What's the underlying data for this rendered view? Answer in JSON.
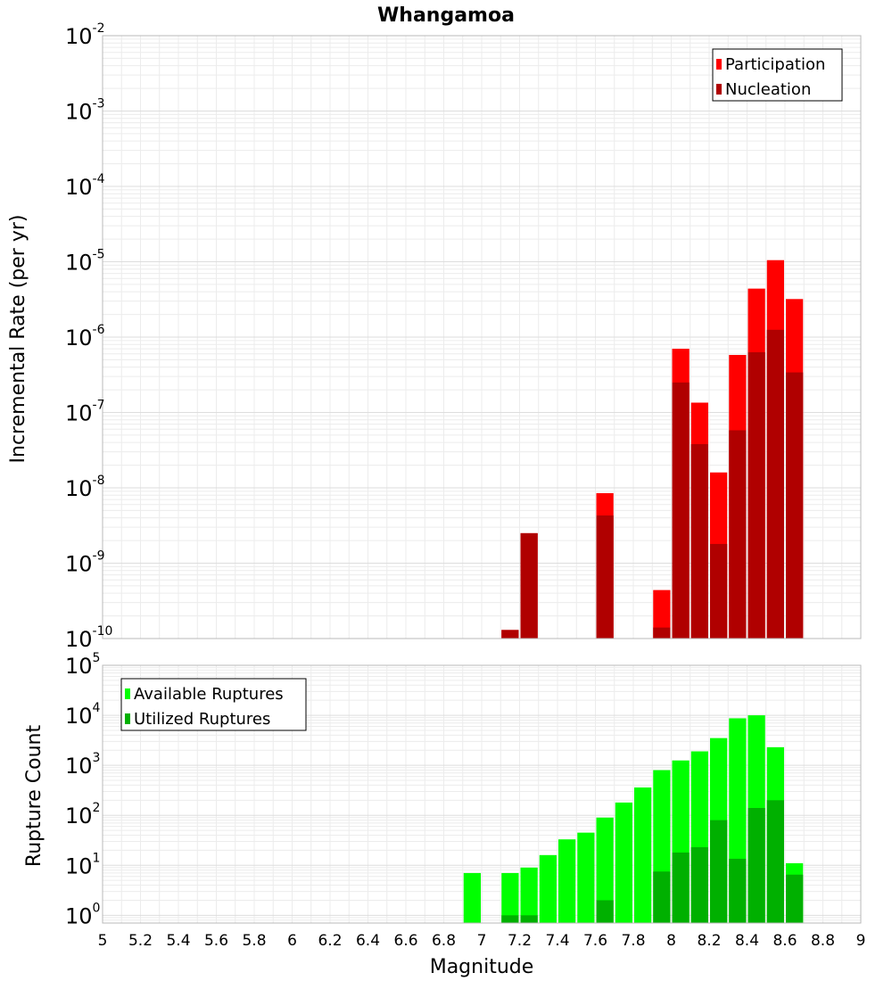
{
  "title": "Whangamoa",
  "xlabel": "Magnitude",
  "x_ticks": [
    "5",
    "5.2",
    "5.4",
    "5.6",
    "5.8",
    "6",
    "6.2",
    "6.4",
    "6.6",
    "6.8",
    "7",
    "7.2",
    "7.4",
    "7.6",
    "7.8",
    "8",
    "8.2",
    "8.4",
    "8.6",
    "8.8",
    "9"
  ],
  "chart_data": [
    {
      "type": "bar",
      "ylabel": "Incremental Rate (per yr)",
      "y_scale": "log",
      "ylim": [
        1e-10,
        0.01
      ],
      "xlim": [
        5,
        9
      ],
      "grid": true,
      "legend_position": "top-right",
      "y_ticks": [
        {
          "base": "10",
          "exp": "-10"
        },
        {
          "base": "10",
          "exp": "-9"
        },
        {
          "base": "10",
          "exp": "-8"
        },
        {
          "base": "10",
          "exp": "-7"
        },
        {
          "base": "10",
          "exp": "-6"
        },
        {
          "base": "10",
          "exp": "-5"
        },
        {
          "base": "10",
          "exp": "-4"
        },
        {
          "base": "10",
          "exp": "-3"
        },
        {
          "base": "10",
          "exp": "-2"
        }
      ],
      "x": [
        7.15,
        7.25,
        7.65,
        7.95,
        8.05,
        8.15,
        8.25,
        8.35,
        8.45,
        8.55,
        8.65
      ],
      "series": [
        {
          "name": "Participation",
          "color": "#ff0000",
          "values": [
            1.3e-10,
            2.5e-09,
            8.5e-09,
            4.4e-10,
            7e-07,
            1.35e-07,
            1.6e-08,
            5.8e-07,
            4.4e-06,
            1.05e-05,
            3.2e-06
          ]
        },
        {
          "name": "Nucleation",
          "color": "#b00000",
          "values": [
            1.3e-10,
            2.5e-09,
            4.3e-09,
            1.4e-10,
            2.5e-07,
            3.8e-08,
            1.8e-09,
            5.8e-08,
            6.3e-07,
            1.25e-06,
            3.4e-07
          ]
        }
      ]
    },
    {
      "type": "bar",
      "ylabel": "Rupture Count",
      "y_scale": "log",
      "ylim": [
        0.7,
        100000
      ],
      "xlim": [
        5,
        9
      ],
      "grid": true,
      "legend_position": "top-left",
      "y_ticks": [
        {
          "base": "10",
          "exp": "0"
        },
        {
          "base": "10",
          "exp": "1"
        },
        {
          "base": "10",
          "exp": "2"
        },
        {
          "base": "10",
          "exp": "3"
        },
        {
          "base": "10",
          "exp": "4"
        },
        {
          "base": "10",
          "exp": "5"
        }
      ],
      "x": [
        6.95,
        7.15,
        7.25,
        7.35,
        7.45,
        7.55,
        7.65,
        7.75,
        7.85,
        7.95,
        8.05,
        8.15,
        8.25,
        8.35,
        8.45,
        8.55,
        8.65
      ],
      "series": [
        {
          "name": "Available Ruptures",
          "color": "#00ff00",
          "values": [
            7,
            7,
            9,
            16,
            33,
            45,
            90,
            180,
            360,
            800,
            1250,
            1900,
            3500,
            8700,
            10000,
            2300,
            11
          ]
        },
        {
          "name": "Utilized Ruptures",
          "color": "#00b000",
          "values": [
            0,
            1,
            1,
            0,
            0,
            0,
            2,
            0,
            0,
            7.5,
            18,
            23,
            80,
            13.5,
            140,
            200,
            6.5
          ]
        }
      ]
    }
  ]
}
